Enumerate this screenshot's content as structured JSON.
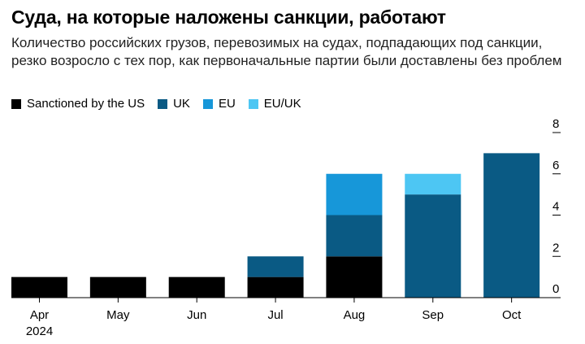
{
  "title": "Суда, на которые наложены санкции, работают",
  "subtitle": "Количество российских грузов, перевозимых на судах, подпадающих под санкции, резко возросло с тех пор, как первоначальные партии были доставлены без проблем",
  "colors": {
    "sanctioned_us": "#000000",
    "uk": "#0a5a84",
    "eu": "#1797d9",
    "eu_uk": "#4dc6f3"
  },
  "chart_data": {
    "type": "bar",
    "stacked": true,
    "categories": [
      "Apr",
      "May",
      "Jun",
      "Jul",
      "Aug",
      "Sep",
      "Oct"
    ],
    "category_sublabels": [
      "2024",
      "",
      "",
      "",
      "",
      "",
      ""
    ],
    "series": [
      {
        "name": "Sanctioned by the US",
        "values": [
          1,
          1,
          1,
          1,
          2,
          0,
          0
        ],
        "color": "#000000"
      },
      {
        "name": "UK",
        "values": [
          0,
          0,
          0,
          1,
          2,
          5,
          7
        ],
        "color": "#0a5a84"
      },
      {
        "name": "EU",
        "values": [
          0,
          0,
          0,
          0,
          2,
          0,
          0
        ],
        "color": "#1797d9"
      },
      {
        "name": "EU/UK",
        "values": [
          0,
          0,
          0,
          0,
          0,
          1,
          0
        ],
        "color": "#4dc6f3"
      }
    ],
    "y_ticks": [
      0,
      2,
      4,
      6,
      8
    ],
    "ylim": [
      0,
      8
    ],
    "legend_position": "top-left",
    "y_axis_position": "right",
    "grid": false
  }
}
